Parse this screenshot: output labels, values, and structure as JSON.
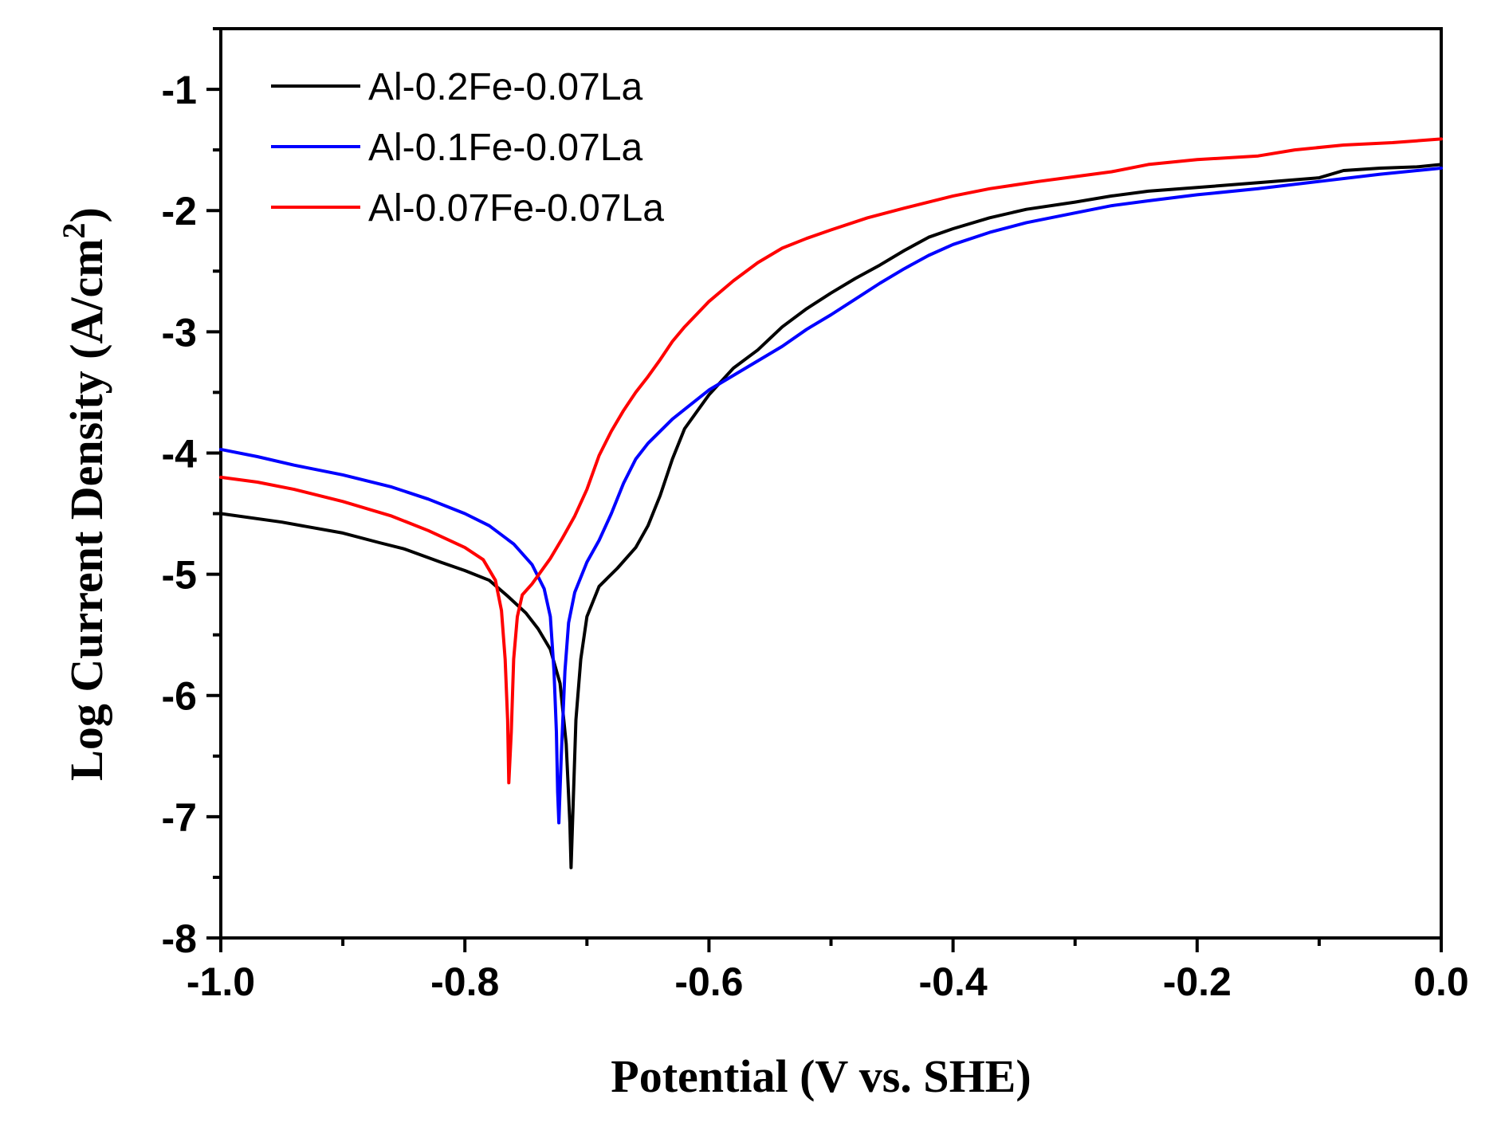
{
  "chart_data": {
    "type": "line",
    "title": "",
    "xlabel": "Potential (V vs. SHE)",
    "ylabel_main": "Log Current Density (A/cm",
    "ylabel_sup": "2",
    "ylabel_close": ")",
    "xlim": [
      -1.0,
      0.0
    ],
    "ylim": [
      -8,
      -0.5
    ],
    "grid": false,
    "legend_position": "top-left",
    "x_ticks": [
      {
        "value": -1.0,
        "label": "-1.0"
      },
      {
        "value": -0.8,
        "label": "-0.8"
      },
      {
        "value": -0.6,
        "label": "-0.6"
      },
      {
        "value": -0.4,
        "label": "-0.4"
      },
      {
        "value": -0.2,
        "label": "-0.2"
      },
      {
        "value": 0.0,
        "label": "0.0"
      }
    ],
    "y_ticks": [
      {
        "value": -1,
        "label": "-1"
      },
      {
        "value": -2,
        "label": "-2"
      },
      {
        "value": -3,
        "label": "-3"
      },
      {
        "value": -4,
        "label": "-4"
      },
      {
        "value": -5,
        "label": "-5"
      },
      {
        "value": -6,
        "label": "-6"
      },
      {
        "value": -7,
        "label": "-7"
      },
      {
        "value": -8,
        "label": "-8"
      }
    ],
    "series": [
      {
        "name": "Al-0.2Fe-0.07La",
        "color": "#000000",
        "points": [
          [
            -1.0,
            -4.5
          ],
          [
            -0.95,
            -4.57
          ],
          [
            -0.9,
            -4.66
          ],
          [
            -0.87,
            -4.74
          ],
          [
            -0.85,
            -4.79
          ],
          [
            -0.82,
            -4.9
          ],
          [
            -0.8,
            -4.97
          ],
          [
            -0.78,
            -5.05
          ],
          [
            -0.765,
            -5.18
          ],
          [
            -0.75,
            -5.32
          ],
          [
            -0.74,
            -5.45
          ],
          [
            -0.73,
            -5.62
          ],
          [
            -0.722,
            -5.9
          ],
          [
            -0.717,
            -6.4
          ],
          [
            -0.714,
            -7.05
          ],
          [
            -0.713,
            -7.42
          ],
          [
            -0.711,
            -6.8
          ],
          [
            -0.709,
            -6.2
          ],
          [
            -0.705,
            -5.7
          ],
          [
            -0.7,
            -5.35
          ],
          [
            -0.69,
            -5.1
          ],
          [
            -0.675,
            -4.95
          ],
          [
            -0.66,
            -4.78
          ],
          [
            -0.65,
            -4.6
          ],
          [
            -0.64,
            -4.35
          ],
          [
            -0.63,
            -4.05
          ],
          [
            -0.62,
            -3.8
          ],
          [
            -0.6,
            -3.52
          ],
          [
            -0.58,
            -3.3
          ],
          [
            -0.56,
            -3.15
          ],
          [
            -0.54,
            -2.96
          ],
          [
            -0.52,
            -2.81
          ],
          [
            -0.5,
            -2.68
          ],
          [
            -0.48,
            -2.56
          ],
          [
            -0.46,
            -2.45
          ],
          [
            -0.44,
            -2.33
          ],
          [
            -0.42,
            -2.22
          ],
          [
            -0.4,
            -2.15
          ],
          [
            -0.37,
            -2.06
          ],
          [
            -0.34,
            -1.99
          ],
          [
            -0.3,
            -1.93
          ],
          [
            -0.27,
            -1.88
          ],
          [
            -0.24,
            -1.84
          ],
          [
            -0.2,
            -1.81
          ],
          [
            -0.15,
            -1.77
          ],
          [
            -0.1,
            -1.73
          ],
          [
            -0.08,
            -1.67
          ],
          [
            -0.05,
            -1.65
          ],
          [
            -0.02,
            -1.64
          ],
          [
            0.0,
            -1.62
          ]
        ]
      },
      {
        "name": "Al-0.1Fe-0.07La",
        "color": "#0000ff",
        "points": [
          [
            -1.0,
            -3.97
          ],
          [
            -0.97,
            -4.03
          ],
          [
            -0.94,
            -4.1
          ],
          [
            -0.9,
            -4.18
          ],
          [
            -0.86,
            -4.28
          ],
          [
            -0.83,
            -4.38
          ],
          [
            -0.8,
            -4.5
          ],
          [
            -0.78,
            -4.6
          ],
          [
            -0.76,
            -4.75
          ],
          [
            -0.745,
            -4.92
          ],
          [
            -0.735,
            -5.12
          ],
          [
            -0.73,
            -5.35
          ],
          [
            -0.727,
            -5.8
          ],
          [
            -0.725,
            -6.3
          ],
          [
            -0.724,
            -6.8
          ],
          [
            -0.723,
            -7.05
          ],
          [
            -0.721,
            -6.5
          ],
          [
            -0.718,
            -5.8
          ],
          [
            -0.715,
            -5.4
          ],
          [
            -0.71,
            -5.15
          ],
          [
            -0.7,
            -4.9
          ],
          [
            -0.69,
            -4.72
          ],
          [
            -0.68,
            -4.5
          ],
          [
            -0.67,
            -4.25
          ],
          [
            -0.66,
            -4.05
          ],
          [
            -0.65,
            -3.92
          ],
          [
            -0.63,
            -3.72
          ],
          [
            -0.6,
            -3.48
          ],
          [
            -0.57,
            -3.3
          ],
          [
            -0.54,
            -3.12
          ],
          [
            -0.52,
            -2.98
          ],
          [
            -0.5,
            -2.86
          ],
          [
            -0.48,
            -2.73
          ],
          [
            -0.46,
            -2.6
          ],
          [
            -0.44,
            -2.48
          ],
          [
            -0.42,
            -2.37
          ],
          [
            -0.4,
            -2.28
          ],
          [
            -0.37,
            -2.18
          ],
          [
            -0.34,
            -2.1
          ],
          [
            -0.3,
            -2.02
          ],
          [
            -0.27,
            -1.96
          ],
          [
            -0.24,
            -1.92
          ],
          [
            -0.2,
            -1.87
          ],
          [
            -0.15,
            -1.82
          ],
          [
            -0.1,
            -1.76
          ],
          [
            -0.05,
            -1.7
          ],
          [
            0.0,
            -1.65
          ]
        ]
      },
      {
        "name": "Al-0.07Fe-0.07La",
        "color": "#ff0000",
        "points": [
          [
            -1.0,
            -4.2
          ],
          [
            -0.97,
            -4.24
          ],
          [
            -0.94,
            -4.3
          ],
          [
            -0.9,
            -4.4
          ],
          [
            -0.86,
            -4.52
          ],
          [
            -0.83,
            -4.64
          ],
          [
            -0.8,
            -4.78
          ],
          [
            -0.785,
            -4.88
          ],
          [
            -0.775,
            -5.05
          ],
          [
            -0.77,
            -5.3
          ],
          [
            -0.767,
            -5.7
          ],
          [
            -0.765,
            -6.2
          ],
          [
            -0.764,
            -6.72
          ],
          [
            -0.762,
            -6.3
          ],
          [
            -0.76,
            -5.7
          ],
          [
            -0.757,
            -5.35
          ],
          [
            -0.753,
            -5.17
          ],
          [
            -0.745,
            -5.08
          ],
          [
            -0.73,
            -4.87
          ],
          [
            -0.72,
            -4.7
          ],
          [
            -0.71,
            -4.52
          ],
          [
            -0.7,
            -4.3
          ],
          [
            -0.69,
            -4.02
          ],
          [
            -0.68,
            -3.82
          ],
          [
            -0.67,
            -3.65
          ],
          [
            -0.66,
            -3.5
          ],
          [
            -0.65,
            -3.37
          ],
          [
            -0.64,
            -3.23
          ],
          [
            -0.63,
            -3.08
          ],
          [
            -0.62,
            -2.96
          ],
          [
            -0.6,
            -2.75
          ],
          [
            -0.58,
            -2.58
          ],
          [
            -0.56,
            -2.43
          ],
          [
            -0.54,
            -2.31
          ],
          [
            -0.52,
            -2.23
          ],
          [
            -0.5,
            -2.16
          ],
          [
            -0.47,
            -2.06
          ],
          [
            -0.44,
            -1.98
          ],
          [
            -0.4,
            -1.88
          ],
          [
            -0.37,
            -1.82
          ],
          [
            -0.33,
            -1.76
          ],
          [
            -0.3,
            -1.72
          ],
          [
            -0.27,
            -1.68
          ],
          [
            -0.24,
            -1.62
          ],
          [
            -0.2,
            -1.58
          ],
          [
            -0.15,
            -1.55
          ],
          [
            -0.12,
            -1.5
          ],
          [
            -0.08,
            -1.46
          ],
          [
            -0.04,
            -1.44
          ],
          [
            0.0,
            -1.41
          ]
        ]
      }
    ]
  }
}
